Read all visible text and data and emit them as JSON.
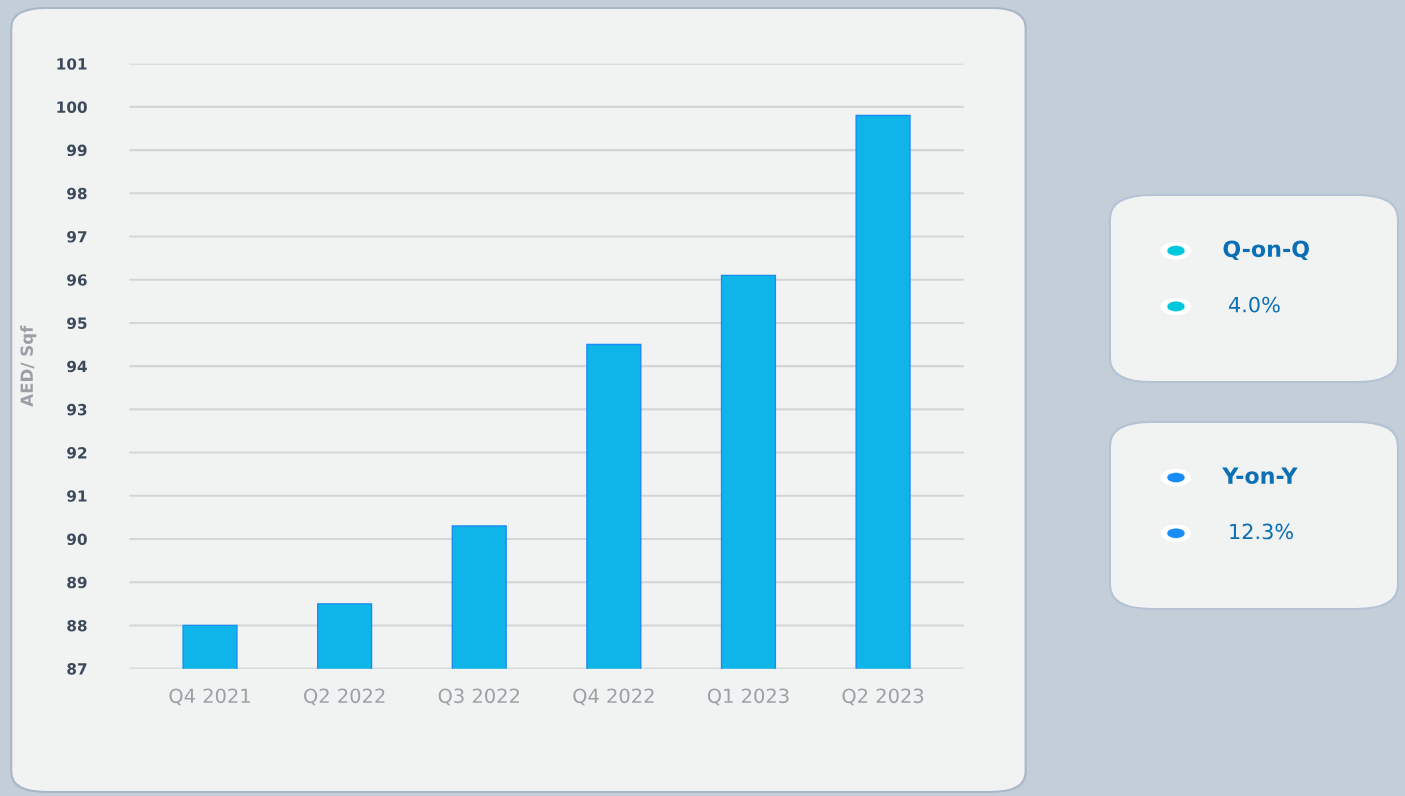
{
  "chart_data": {
    "type": "bar",
    "ylabel": "AED/ Sqf",
    "categories": [
      "Q4 2021",
      "Q2 2022",
      "Q3 2022",
      "Q4 2022",
      "Q1 2023",
      "Q2 2023"
    ],
    "values": [
      88.0,
      88.5,
      90.3,
      94.5,
      96.1,
      99.8
    ],
    "color": "#0fb4e8",
    "ylim": [
      87,
      101
    ],
    "yticks": [
      87,
      88,
      89,
      90,
      91,
      92,
      93,
      94,
      95,
      96,
      97,
      98,
      99,
      100,
      101
    ],
    "grid": "y",
    "legend": false,
    "annotations": [
      "Q-on-Q",
      "4.0%",
      "Y-on-Y",
      "12.3%"
    ]
  }
}
